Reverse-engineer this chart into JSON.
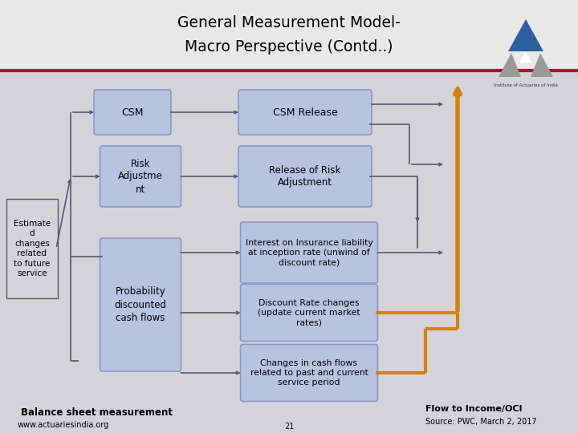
{
  "title_line1": "General Measurement Model-",
  "title_line2": "Macro Perspective (Contd..)",
  "bg_color": "#d4d4d8",
  "header_bg": "#e8e8e8",
  "box_fill": "#b8c3e0",
  "box_edge": "#8898cc",
  "red_line_color": "#b01020",
  "arrow_gray": "#555577",
  "arrow_orange": "#d4820a",
  "left_label": "Estimate\nd\nchanges\nrelated\nto future\nservice",
  "bottom_left_label": "Balance sheet measurement",
  "bottom_right_label1": "Flow to Income/OCI",
  "bottom_right_label2": "Source: PWC, March 2, 2017",
  "website": "www.actuariesindia.org",
  "page_num": "21"
}
